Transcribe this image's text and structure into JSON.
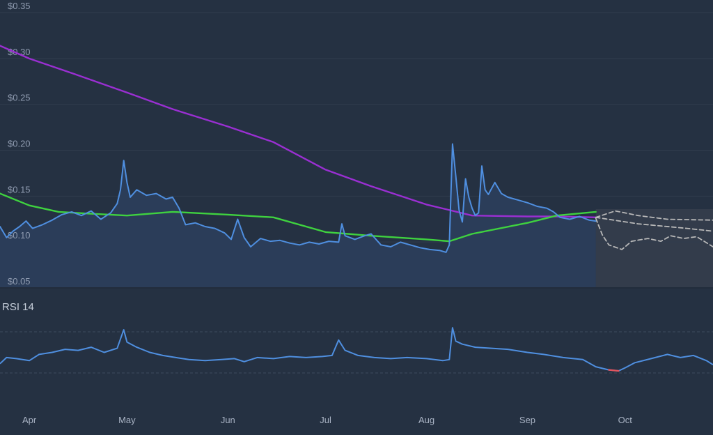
{
  "colors": {
    "background": "#253142",
    "price_fill": "#2b3d59",
    "forecast_band": "#333c4b",
    "gridline": "#313d4e",
    "price_line": "#4f8fe0",
    "sma_long": "#9a2fd2",
    "sma_short": "#3fd23f",
    "forecast": "#b9b9b9",
    "rsi_line": "#4f8fe0",
    "rsi_extreme": "#e0555f"
  },
  "chart_data": [
    {
      "type": "line",
      "ylim": [
        0.04,
        0.36
      ],
      "yticks": [
        {
          "value": 0.35,
          "label": "$0.35"
        },
        {
          "value": 0.3,
          "label": "$0.30"
        },
        {
          "value": 0.25,
          "label": "$0.25"
        },
        {
          "value": 0.2,
          "label": "$0.20"
        },
        {
          "value": 0.15,
          "label": "$0.15"
        },
        {
          "value": 0.1,
          "label": "$0.10"
        },
        {
          "value": 0.05,
          "label": "$0.05"
        }
      ],
      "xlim": [
        "2021-03-23",
        "2021-10-28"
      ],
      "xticks": [
        {
          "date": "2021-04-01",
          "label": "Apr"
        },
        {
          "date": "2021-05-01",
          "label": "May"
        },
        {
          "date": "2021-06-01",
          "label": "Jun"
        },
        {
          "date": "2021-07-01",
          "label": "Jul"
        },
        {
          "date": "2021-08-01",
          "label": "Aug"
        },
        {
          "date": "2021-09-01",
          "label": "Sep"
        },
        {
          "date": "2021-10-01",
          "label": "Oct"
        }
      ],
      "forecast_start": "2021-09-22",
      "series": [
        {
          "role": "price",
          "points": [
            [
              "2021-03-23",
              0.11
            ],
            [
              "2021-03-25",
              0.098
            ],
            [
              "2021-03-27",
              0.105
            ],
            [
              "2021-03-29",
              0.11
            ],
            [
              "2021-03-31",
              0.116
            ],
            [
              "2021-04-02",
              0.108
            ],
            [
              "2021-04-05",
              0.112
            ],
            [
              "2021-04-08",
              0.117
            ],
            [
              "2021-04-11",
              0.123
            ],
            [
              "2021-04-14",
              0.126
            ],
            [
              "2021-04-17",
              0.122
            ],
            [
              "2021-04-20",
              0.127
            ],
            [
              "2021-04-23",
              0.118
            ],
            [
              "2021-04-26",
              0.125
            ],
            [
              "2021-04-28",
              0.135
            ],
            [
              "2021-04-29",
              0.15
            ],
            [
              "2021-04-30",
              0.182
            ],
            [
              "2021-05-01",
              0.158
            ],
            [
              "2021-05-02",
              0.142
            ],
            [
              "2021-05-04",
              0.15
            ],
            [
              "2021-05-07",
              0.144
            ],
            [
              "2021-05-10",
              0.146
            ],
            [
              "2021-05-13",
              0.14
            ],
            [
              "2021-05-15",
              0.142
            ],
            [
              "2021-05-17",
              0.13
            ],
            [
              "2021-05-19",
              0.112
            ],
            [
              "2021-05-22",
              0.114
            ],
            [
              "2021-05-25",
              0.11
            ],
            [
              "2021-05-28",
              0.108
            ],
            [
              "2021-05-31",
              0.103
            ],
            [
              "2021-06-02",
              0.096
            ],
            [
              "2021-06-04",
              0.118
            ],
            [
              "2021-06-06",
              0.098
            ],
            [
              "2021-06-08",
              0.088
            ],
            [
              "2021-06-11",
              0.097
            ],
            [
              "2021-06-14",
              0.094
            ],
            [
              "2021-06-17",
              0.095
            ],
            [
              "2021-06-20",
              0.092
            ],
            [
              "2021-06-23",
              0.09
            ],
            [
              "2021-06-26",
              0.093
            ],
            [
              "2021-06-29",
              0.091
            ],
            [
              "2021-07-02",
              0.094
            ],
            [
              "2021-07-05",
              0.093
            ],
            [
              "2021-07-06",
              0.113
            ],
            [
              "2021-07-07",
              0.1
            ],
            [
              "2021-07-10",
              0.096
            ],
            [
              "2021-07-13",
              0.1
            ],
            [
              "2021-07-15",
              0.102
            ],
            [
              "2021-07-18",
              0.09
            ],
            [
              "2021-07-21",
              0.088
            ],
            [
              "2021-07-24",
              0.093
            ],
            [
              "2021-07-27",
              0.09
            ],
            [
              "2021-07-30",
              0.087
            ],
            [
              "2021-08-02",
              0.085
            ],
            [
              "2021-08-05",
              0.084
            ],
            [
              "2021-08-07",
              0.082
            ],
            [
              "2021-08-08",
              0.09
            ],
            [
              "2021-08-09",
              0.2
            ],
            [
              "2021-08-10",
              0.165
            ],
            [
              "2021-08-11",
              0.128
            ],
            [
              "2021-08-12",
              0.115
            ],
            [
              "2021-08-13",
              0.162
            ],
            [
              "2021-08-14",
              0.142
            ],
            [
              "2021-08-15",
              0.13
            ],
            [
              "2021-08-16",
              0.122
            ],
            [
              "2021-08-17",
              0.125
            ],
            [
              "2021-08-18",
              0.176
            ],
            [
              "2021-08-19",
              0.15
            ],
            [
              "2021-08-20",
              0.145
            ],
            [
              "2021-08-22",
              0.158
            ],
            [
              "2021-08-24",
              0.146
            ],
            [
              "2021-08-26",
              0.142
            ],
            [
              "2021-08-29",
              0.139
            ],
            [
              "2021-09-01",
              0.136
            ],
            [
              "2021-09-04",
              0.132
            ],
            [
              "2021-09-07",
              0.13
            ],
            [
              "2021-09-09",
              0.126
            ],
            [
              "2021-09-11",
              0.12
            ],
            [
              "2021-09-14",
              0.118
            ],
            [
              "2021-09-17",
              0.121
            ],
            [
              "2021-09-20",
              0.117
            ],
            [
              "2021-09-22",
              0.116
            ]
          ]
        },
        {
          "role": "sma-long",
          "points": [
            [
              "2021-03-23",
              0.307
            ],
            [
              "2021-04-01",
              0.293
            ],
            [
              "2021-04-15",
              0.276
            ],
            [
              "2021-05-01",
              0.256
            ],
            [
              "2021-05-15",
              0.238
            ],
            [
              "2021-06-01",
              0.219
            ],
            [
              "2021-06-15",
              0.202
            ],
            [
              "2021-07-01",
              0.172
            ],
            [
              "2021-07-15",
              0.154
            ],
            [
              "2021-08-01",
              0.134
            ],
            [
              "2021-08-15",
              0.122
            ],
            [
              "2021-09-01",
              0.121
            ],
            [
              "2021-09-10",
              0.121
            ],
            [
              "2021-09-22",
              0.12
            ]
          ]
        },
        {
          "role": "sma-short",
          "points": [
            [
              "2021-03-23",
              0.146
            ],
            [
              "2021-04-01",
              0.133
            ],
            [
              "2021-04-10",
              0.126
            ],
            [
              "2021-04-20",
              0.124
            ],
            [
              "2021-05-01",
              0.122
            ],
            [
              "2021-05-15",
              0.126
            ],
            [
              "2021-06-01",
              0.123
            ],
            [
              "2021-06-15",
              0.12
            ],
            [
              "2021-07-01",
              0.104
            ],
            [
              "2021-07-15",
              0.1
            ],
            [
              "2021-08-01",
              0.096
            ],
            [
              "2021-08-08",
              0.094
            ],
            [
              "2021-08-15",
              0.102
            ],
            [
              "2021-09-01",
              0.114
            ],
            [
              "2021-09-10",
              0.122
            ],
            [
              "2021-09-22",
              0.126
            ]
          ]
        },
        {
          "role": "forecast-1",
          "points": [
            [
              "2021-09-22",
              0.12
            ],
            [
              "2021-09-28",
              0.127
            ],
            [
              "2021-10-05",
              0.122
            ],
            [
              "2021-10-14",
              0.118
            ],
            [
              "2021-10-28",
              0.117
            ]
          ]
        },
        {
          "role": "forecast-2",
          "points": [
            [
              "2021-09-22",
              0.12
            ],
            [
              "2021-10-05",
              0.113
            ],
            [
              "2021-10-20",
              0.108
            ],
            [
              "2021-10-28",
              0.105
            ]
          ]
        },
        {
          "role": "forecast-3",
          "points": [
            [
              "2021-09-22",
              0.119
            ],
            [
              "2021-09-24",
              0.101
            ],
            [
              "2021-09-26",
              0.09
            ],
            [
              "2021-09-30",
              0.085
            ],
            [
              "2021-10-03",
              0.094
            ],
            [
              "2021-10-08",
              0.097
            ],
            [
              "2021-10-12",
              0.094
            ],
            [
              "2021-10-15",
              0.1
            ],
            [
              "2021-10-19",
              0.097
            ],
            [
              "2021-10-23",
              0.099
            ],
            [
              "2021-10-28",
              0.088
            ]
          ]
        }
      ]
    },
    {
      "type": "line",
      "title": "RSI 14",
      "ylim": [
        20,
        90
      ],
      "guide_levels": [
        70,
        30
      ],
      "series": [
        {
          "role": "rsi",
          "points": [
            [
              "2021-03-23",
              39
            ],
            [
              "2021-03-25",
              45
            ],
            [
              "2021-03-28",
              44
            ],
            [
              "2021-04-01",
              42
            ],
            [
              "2021-04-04",
              48
            ],
            [
              "2021-04-08",
              50
            ],
            [
              "2021-04-12",
              53
            ],
            [
              "2021-04-16",
              52
            ],
            [
              "2021-04-20",
              55
            ],
            [
              "2021-04-24",
              50
            ],
            [
              "2021-04-28",
              54
            ],
            [
              "2021-04-30",
              72
            ],
            [
              "2021-05-01",
              60
            ],
            [
              "2021-05-04",
              55
            ],
            [
              "2021-05-08",
              50
            ],
            [
              "2021-05-12",
              47
            ],
            [
              "2021-05-16",
              45
            ],
            [
              "2021-05-20",
              43
            ],
            [
              "2021-05-25",
              42
            ],
            [
              "2021-05-30",
              43
            ],
            [
              "2021-06-03",
              44
            ],
            [
              "2021-06-06",
              41
            ],
            [
              "2021-06-10",
              45
            ],
            [
              "2021-06-15",
              44
            ],
            [
              "2021-06-20",
              46
            ],
            [
              "2021-06-25",
              45
            ],
            [
              "2021-06-30",
              46
            ],
            [
              "2021-07-03",
              47
            ],
            [
              "2021-07-05",
              62
            ],
            [
              "2021-07-07",
              52
            ],
            [
              "2021-07-11",
              47
            ],
            [
              "2021-07-16",
              45
            ],
            [
              "2021-07-21",
              44
            ],
            [
              "2021-07-26",
              45
            ],
            [
              "2021-08-01",
              44
            ],
            [
              "2021-08-06",
              42
            ],
            [
              "2021-08-08",
              43
            ],
            [
              "2021-08-09",
              74
            ],
            [
              "2021-08-10",
              61
            ],
            [
              "2021-08-12",
              58
            ],
            [
              "2021-08-16",
              55
            ],
            [
              "2021-08-21",
              54
            ],
            [
              "2021-08-26",
              53
            ],
            [
              "2021-09-01",
              50
            ],
            [
              "2021-09-06",
              48
            ],
            [
              "2021-09-12",
              45
            ],
            [
              "2021-09-18",
              43
            ],
            [
              "2021-09-22",
              36
            ],
            [
              "2021-09-26",
              33
            ],
            [
              "2021-09-29",
              32
            ],
            [
              "2021-10-01",
              35
            ],
            [
              "2021-10-04",
              40
            ],
            [
              "2021-10-09",
              44
            ],
            [
              "2021-10-14",
              48
            ],
            [
              "2021-10-18",
              45
            ],
            [
              "2021-10-22",
              47
            ],
            [
              "2021-10-26",
              42
            ],
            [
              "2021-10-28",
              38
            ]
          ]
        }
      ]
    }
  ]
}
